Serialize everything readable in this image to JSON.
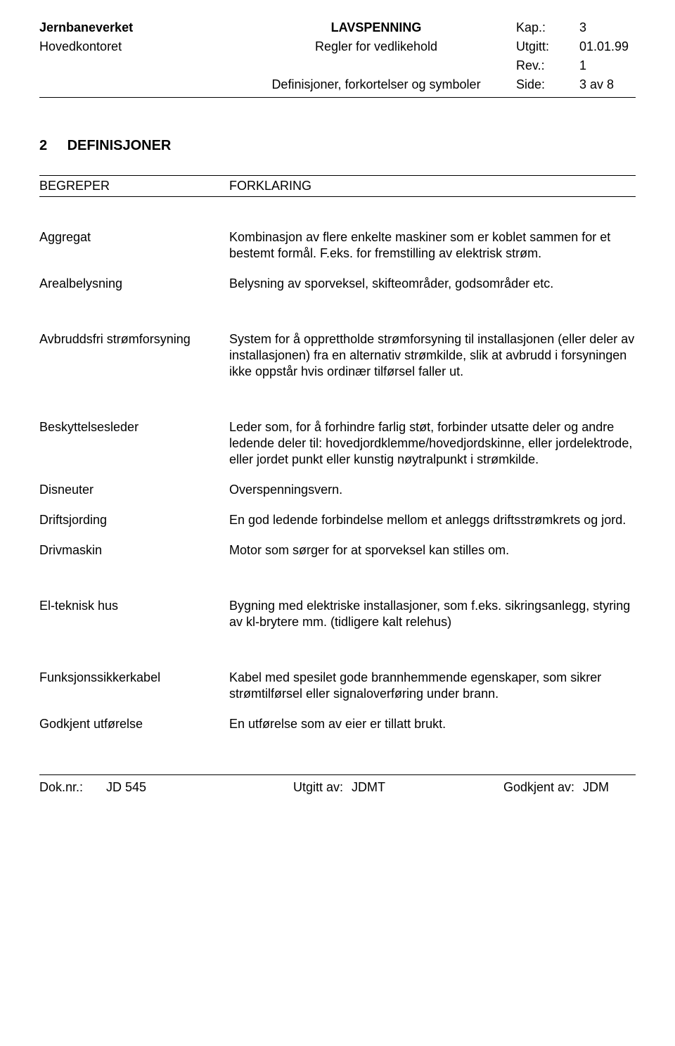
{
  "header": {
    "org": "Jernbaneverket",
    "dept": "Hovedkontoret",
    "title": "LAVSPENNING",
    "subtitle1": "Regler for vedlikehold",
    "subtitle2": "Definisjoner, forkortelser og symboler",
    "meta": {
      "kap_label": "Kap.:",
      "kap_val": "3",
      "utgitt_label": "Utgitt:",
      "utgitt_val": "01.01.99",
      "rev_label": "Rev.:",
      "rev_val": "1",
      "side_label": "Side:",
      "side_val": "3 av 8"
    }
  },
  "section": {
    "num": "2",
    "heading": "DEFINISJONER"
  },
  "table_header": {
    "col1": "BEGREPER",
    "col2": "FORKLARING"
  },
  "terms": {
    "aggregat": {
      "label": "Aggregat",
      "def": "Kombinasjon av flere enkelte maskiner som er koblet sammen for et bestemt formål. F.eks. for fremstilling av elektrisk strøm."
    },
    "arealbelysning": {
      "label": "Arealbelysning",
      "def": "Belysning av sporveksel, skifteområder, godsområder etc."
    },
    "avbruddsfri": {
      "label": "Avbruddsfri strømforsyning",
      "def": "System for å opprettholde strømforsyning til installasjonen (eller deler av installasjonen) fra en alternativ strømkilde, slik at avbrudd i forsyningen ikke oppstår hvis ordinær tilførsel faller ut."
    },
    "beskyttelsesleder": {
      "label": "Beskyttelsesleder",
      "def": "Leder som, for å forhindre farlig støt, forbinder utsatte deler og andre ledende deler til: hovedjordklemme/hovedjordskinne, eller jordelektrode, eller jordet punkt eller kunstig nøytralpunkt i strømkilde."
    },
    "disneuter": {
      "label": "Disneuter",
      "def": "Overspenningsvern."
    },
    "driftsjording": {
      "label": "Driftsjording",
      "def": "En god ledende forbindelse mellom et anleggs driftsstrømkrets og jord."
    },
    "drivmaskin": {
      "label": "Drivmaskin",
      "def": "Motor som sørger for at sporveksel kan stilles om."
    },
    "elteknisk": {
      "label": "El-teknisk hus",
      "def": "Bygning med elektriske installasjoner, som f.eks. sikringsanlegg, styring av kl-brytere mm. (tidligere kalt relehus)"
    },
    "funksjonssikkerkabel": {
      "label": "Funksjonssikkerkabel",
      "def": "Kabel med spesilet gode brannhemmende egenskaper, som sikrer strømtilførsel eller signaloverføring under brann."
    },
    "godkjent": {
      "label": "Godkjent utførelse",
      "def": "En utførelse som av eier er tillatt brukt."
    }
  },
  "footer": {
    "doknr_label": "Dok.nr.:",
    "doknr_val": "JD 545",
    "utgitt_label": "Utgitt av:",
    "utgitt_val": "JDMT",
    "godkjent_label": "Godkjent av:",
    "godkjent_val": "JDM"
  }
}
